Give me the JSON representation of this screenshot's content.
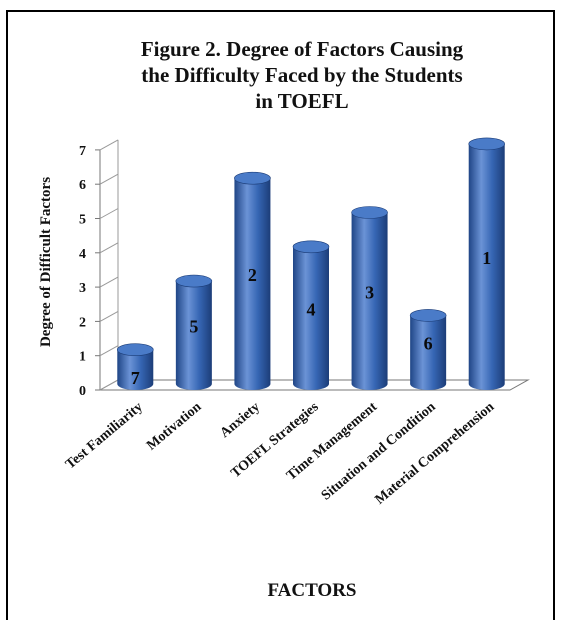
{
  "chart_data": {
    "type": "bar",
    "title": [
      "Figure 2. Degree of  Factors Causing",
      "the Difficulty Faced by the Students",
      "in TOEFL"
    ],
    "xlabel": "FACTORS",
    "ylabel": "Degree of Difficult Factors",
    "ylim": [
      0,
      7
    ],
    "yticks": [
      "0",
      "1",
      "2",
      "3",
      "4",
      "5",
      "6",
      "7"
    ],
    "categories": [
      "Test Familiarity",
      "Motivation",
      "Anxiety",
      "TOEFL Strategies",
      "Time Management",
      "Situation and Condition",
      "Material Comprehension"
    ],
    "values": [
      1,
      3,
      6,
      4,
      5,
      2,
      7
    ],
    "data_labels": [
      "7",
      "5",
      "2",
      "4",
      "3",
      "6",
      "1"
    ],
    "style": "3d-cylinder",
    "grid": false,
    "colors": {
      "bar_body": "#2f5da8",
      "bar_light": "#6b93d6",
      "bar_dark": "#1c3d78",
      "bar_top": "#4a7bc8"
    }
  }
}
